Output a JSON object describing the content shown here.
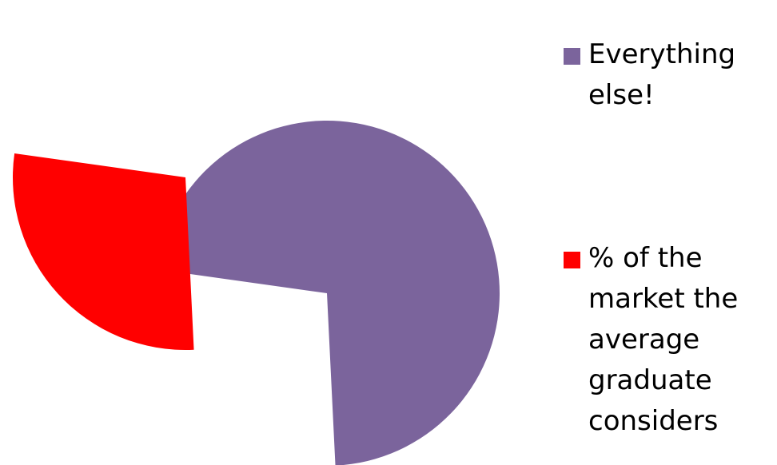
{
  "chart_data": {
    "type": "pie",
    "title": "",
    "exploded": true,
    "series": [
      {
        "values": [
          72,
          28
        ],
        "categories": [
          "Everything else!",
          "% of the market the average graduate considers"
        ],
        "colors": [
          "#7B649C",
          "#FF0000"
        ]
      }
    ],
    "legend": {
      "placement": "right",
      "entries": [
        {
          "label": "Everything else!",
          "color": "#7B649C"
        },
        {
          "label": "% of the market the average graduate considers",
          "color": "#FF0000"
        }
      ]
    }
  }
}
